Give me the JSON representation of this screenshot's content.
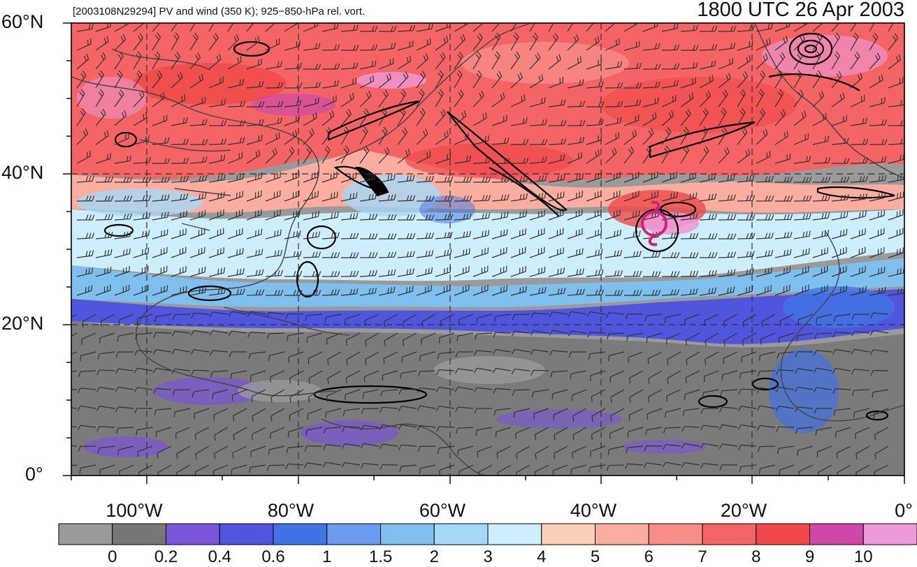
{
  "header": {
    "subtitle": "[2003108N29294] PV and wind (350 K); 925−850-hPa rel. vort.",
    "valid_time": "1800 UTC 26 Apr 2003"
  },
  "axes": {
    "lat_labels": [
      "60°N",
      "40°N",
      "20°N",
      "0°"
    ],
    "lon_labels": [
      "100°W",
      "80°W",
      "60°W",
      "40°W",
      "20°W",
      "0°"
    ]
  },
  "map": {
    "extent": {
      "lon_min": -110,
      "lon_max": 0,
      "lat_min": 0,
      "lat_max": 60
    },
    "grid_lines_dashed": true,
    "storm_marker": {
      "lon": -33,
      "lat": 33,
      "color": "#d1207a"
    }
  },
  "colorbar": {
    "colors": [
      "#9a9a9a",
      "#777777",
      "#7b55d8",
      "#4f55dc",
      "#4074e4",
      "#6a9cf0",
      "#7fbfee",
      "#a5d8f6",
      "#cdeefd",
      "#fbd0b6",
      "#fbaea0",
      "#f88c86",
      "#f56464",
      "#f04848",
      "#cf48a8",
      "#ee9ad8"
    ],
    "labels": [
      "0",
      "0.2",
      "0.4",
      "0.6",
      "1",
      "1.5",
      "2",
      "3",
      "4",
      "5",
      "6",
      "7",
      "8",
      "9",
      "10"
    ]
  }
}
